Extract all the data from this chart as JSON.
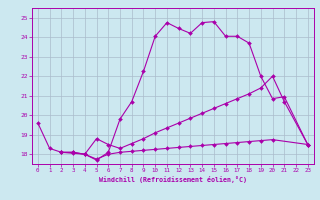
{
  "xlabel": "Windchill (Refroidissement éolien,°C)",
  "background_color": "#cce8f0",
  "grid_color": "#aabccc",
  "line_color": "#aa00aa",
  "xlim": [
    -0.5,
    23.5
  ],
  "ylim": [
    17.5,
    25.5
  ],
  "xticks": [
    0,
    1,
    2,
    3,
    4,
    5,
    6,
    7,
    8,
    9,
    10,
    11,
    12,
    13,
    14,
    15,
    16,
    17,
    18,
    19,
    20,
    21,
    22,
    23
  ],
  "yticks": [
    18,
    19,
    20,
    21,
    22,
    23,
    24,
    25
  ],
  "s1_x": [
    0,
    1,
    2,
    3,
    4,
    5,
    6,
    7,
    8,
    9,
    10,
    11,
    12,
    13,
    14,
    15,
    16,
    17,
    18,
    19,
    20,
    21,
    23
  ],
  "s1_y": [
    19.6,
    18.3,
    18.1,
    18.05,
    18.0,
    17.7,
    18.1,
    19.8,
    20.7,
    22.25,
    24.05,
    24.75,
    24.45,
    24.2,
    24.75,
    24.8,
    24.05,
    24.05,
    23.7,
    22.0,
    20.85,
    20.95,
    18.5
  ],
  "s2_x": [
    2,
    3,
    4,
    5,
    6,
    7,
    8,
    9,
    10,
    11,
    12,
    13,
    14,
    15,
    16,
    17,
    18,
    19,
    20,
    21,
    23
  ],
  "s2_y": [
    18.1,
    18.1,
    18.0,
    18.8,
    18.5,
    18.3,
    18.55,
    18.8,
    19.1,
    19.35,
    19.6,
    19.85,
    20.1,
    20.35,
    20.6,
    20.85,
    21.1,
    21.4,
    22.0,
    20.7,
    18.5
  ],
  "s3_x": [
    2,
    3,
    4,
    5,
    6,
    7,
    8,
    9,
    10,
    11,
    12,
    13,
    14,
    15,
    16,
    17,
    18,
    19,
    20,
    23
  ],
  "s3_y": [
    18.1,
    18.1,
    18.0,
    17.75,
    18.0,
    18.1,
    18.15,
    18.2,
    18.25,
    18.3,
    18.35,
    18.4,
    18.45,
    18.5,
    18.55,
    18.6,
    18.65,
    18.7,
    18.75,
    18.5
  ]
}
